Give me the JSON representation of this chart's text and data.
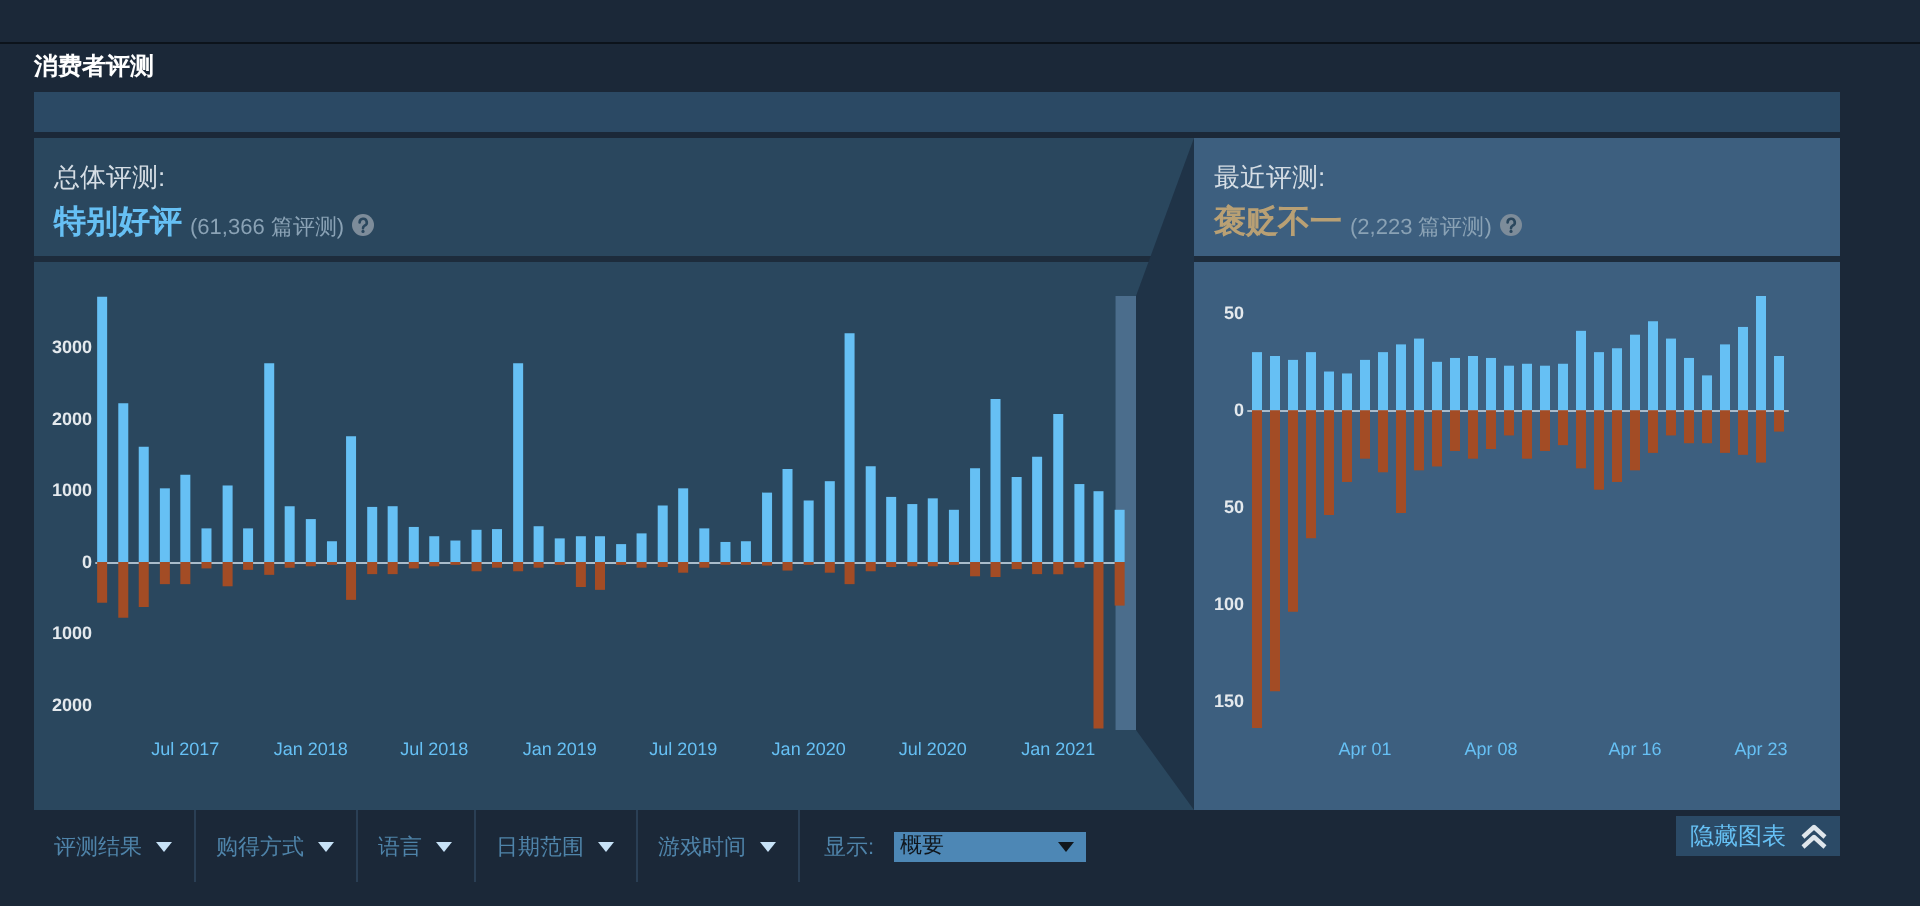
{
  "chart_data": [
    {
      "type": "other",
      "title": "消费者评测"
    },
    {
      "type": "bar",
      "title": "总体评测:",
      "subtitle": "特别好评",
      "annotations": [
        "(61,366 篇评测)"
      ],
      "stacked": true,
      "x": [
        "2017-03",
        "2017-04",
        "2017-05",
        "2017-06",
        "2017-07",
        "2017-08",
        "2017-09",
        "2017-10",
        "2017-11",
        "2017-12",
        "2018-01",
        "2018-02",
        "2018-03",
        "2018-04",
        "2018-05",
        "2018-06",
        "2018-07",
        "2018-08",
        "2018-09",
        "2018-10",
        "2018-11",
        "2018-12",
        "2019-01",
        "2019-02",
        "2019-03",
        "2019-04",
        "2019-05",
        "2019-06",
        "2019-07",
        "2019-08",
        "2019-09",
        "2019-10",
        "2019-11",
        "2019-12",
        "2020-01",
        "2020-02",
        "2020-03",
        "2020-04",
        "2020-05",
        "2020-06",
        "2020-07",
        "2020-08",
        "2020-09",
        "2020-10",
        "2020-11",
        "2020-12",
        "2021-01",
        "2021-02",
        "2021-03",
        "2021-04"
      ],
      "series": [
        {
          "color": "#66c0f4",
          "values": [
            3710,
            2220,
            1610,
            1030,
            1220,
            470,
            1070,
            470,
            2780,
            780,
            600,
            290,
            1760,
            770,
            780,
            490,
            360,
            300,
            450,
            460,
            2780,
            500,
            330,
            360,
            360,
            250,
            400,
            790,
            1030,
            470,
            280,
            290,
            970,
            1300,
            860,
            1130,
            3200,
            1340,
            910,
            810,
            890,
            730,
            1310,
            2280,
            1190,
            1470,
            2070,
            1090,
            990,
            730
          ]
        },
        {
          "color": "#a34c25",
          "values": [
            -570,
            -780,
            -630,
            -310,
            -310,
            -90,
            -340,
            -110,
            -180,
            -80,
            -60,
            -40,
            -530,
            -170,
            -170,
            -90,
            -60,
            -40,
            -130,
            -80,
            -130,
            -80,
            -40,
            -350,
            -390,
            -40,
            -80,
            -70,
            -150,
            -80,
            -40,
            -40,
            -50,
            -120,
            -40,
            -150,
            -310,
            -130,
            -70,
            -60,
            -60,
            -40,
            -200,
            -210,
            -100,
            -170,
            -170,
            -80,
            -2330,
            -610
          ]
        }
      ],
      "xlim": [
        "2017-02-20",
        "2021-04-25"
      ],
      "xticks": [
        {
          "value": "2017-07",
          "label": "Jul 2017"
        },
        {
          "value": "2018-01",
          "label": "Jan 2018"
        },
        {
          "value": "2018-07",
          "label": "Jul 2018"
        },
        {
          "value": "2019-01",
          "label": "Jan 2019"
        },
        {
          "value": "2019-07",
          "label": "Jul 2019"
        },
        {
          "value": "2020-01",
          "label": "Jan 2020"
        },
        {
          "value": "2020-07",
          "label": "Jul 2020"
        },
        {
          "value": "2021-01",
          "label": "Jan 2021"
        }
      ],
      "ylim": [
        -2350,
        3720
      ],
      "yticks": [
        {
          "value": -2000,
          "label": "2000"
        },
        {
          "value": -1000,
          "label": "1000"
        },
        0,
        1000,
        2000,
        3000
      ],
      "bands": [
        {
          "axis": "x",
          "from": "2021-03-26",
          "to": "2021-04-25",
          "color": "#4b6d8c"
        }
      ]
    },
    {
      "type": "bar",
      "title": "最近评测:",
      "subtitle": "褒贬不一",
      "annotations": [
        "(2,223 篇评测)"
      ],
      "stacked": true,
      "x": [
        "2021-03-26",
        "2021-03-27",
        "2021-03-28",
        "2021-03-29",
        "2021-03-30",
        "2021-03-31",
        "2021-04-01",
        "2021-04-02",
        "2021-04-03",
        "2021-04-04",
        "2021-04-05",
        "2021-04-06",
        "2021-04-07",
        "2021-04-08",
        "2021-04-09",
        "2021-04-10",
        "2021-04-11",
        "2021-04-12",
        "2021-04-13",
        "2021-04-14",
        "2021-04-15",
        "2021-04-16",
        "2021-04-17",
        "2021-04-18",
        "2021-04-19",
        "2021-04-20",
        "2021-04-21",
        "2021-04-22",
        "2021-04-23",
        "2021-04-24"
      ],
      "series": [
        {
          "color": "#66c0f4",
          "values": [
            30,
            28,
            26,
            30,
            20,
            19,
            26,
            30,
            34,
            37,
            25,
            27,
            28,
            27,
            23,
            24,
            23,
            24,
            41,
            30,
            32,
            39,
            46,
            37,
            27,
            18,
            34,
            43,
            59,
            28
          ]
        },
        {
          "color": "#a34c25",
          "values": [
            -164,
            -145,
            -104,
            -66,
            -54,
            -37,
            -25,
            -32,
            -53,
            -31,
            -29,
            -21,
            -25,
            -20,
            -13,
            -25,
            -21,
            -18,
            -30,
            -41,
            -37,
            -31,
            -22,
            -13,
            -17,
            -17,
            -22,
            -23,
            -27,
            -11
          ]
        }
      ],
      "xlim": [
        "2021-03-25T12:00",
        "2021-04-24T12:00"
      ],
      "xticks": [
        {
          "value": "2021-04-01",
          "label": "Apr 01"
        },
        {
          "value": "2021-04-08",
          "label": "Apr 08"
        },
        {
          "value": "2021-04-16",
          "label": "Apr 16"
        },
        {
          "value": "2021-04-23",
          "label": "Apr 23"
        }
      ],
      "ylim": [
        -165,
        60
      ],
      "yticks": [
        {
          "value": -150,
          "label": "150"
        },
        {
          "value": -100,
          "label": "100"
        },
        {
          "value": -50,
          "label": "50"
        },
        0,
        50
      ]
    },
    {
      "type": "other",
      "annotations": [
        "评测结果",
        "购得方式",
        "语言",
        "日期范围",
        "游戏时间",
        "显示:",
        "概要",
        "隐藏图表"
      ]
    }
  ]
}
